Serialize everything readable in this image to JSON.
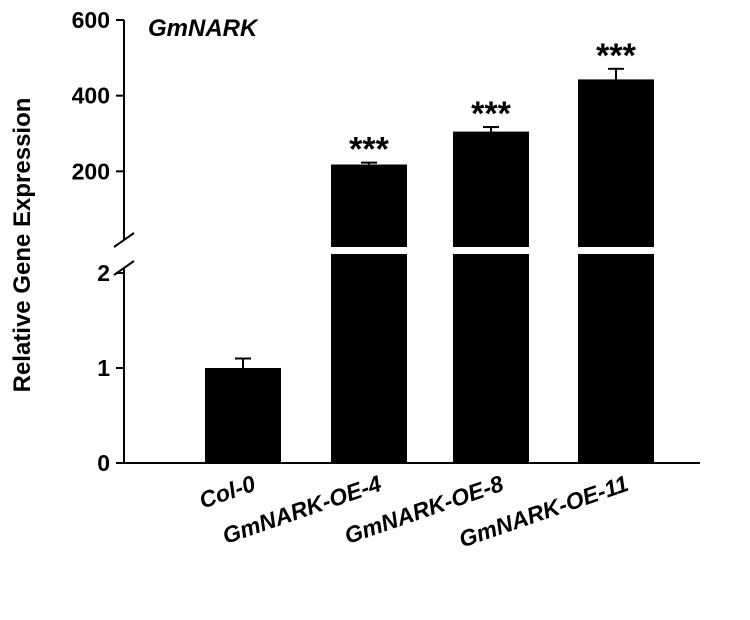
{
  "chart_data": {
    "type": "bar",
    "title": "GmNARK",
    "ylabel": "Relative Gene Expression",
    "xlabel": "",
    "broken_axis": true,
    "lower_segment": {
      "ylim": [
        0,
        2
      ],
      "ticks": [
        "0",
        "1",
        "2"
      ]
    },
    "upper_segment": {
      "ylim": [
        0,
        600
      ],
      "ticks": [
        "200",
        "400",
        "600"
      ]
    },
    "categories": [
      "Col-0",
      "GmNARK-OE-4",
      "GmNARK-OE-8",
      "GmNARK-OE-11"
    ],
    "values": [
      1.0,
      218,
      305,
      443
    ],
    "errors": [
      0.1,
      5,
      12,
      28
    ],
    "significance": [
      "",
      "***",
      "***",
      "***"
    ],
    "bar_color": "#000000",
    "grid": false
  }
}
